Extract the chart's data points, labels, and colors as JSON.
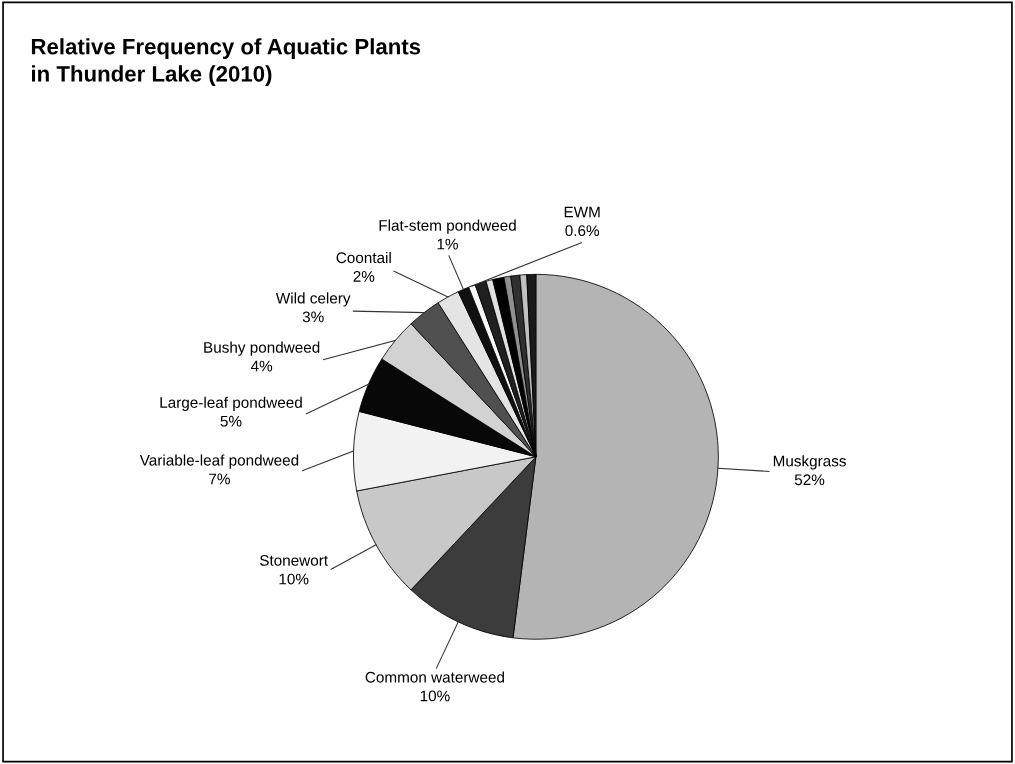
{
  "chart_data": {
    "type": "pie",
    "title": "Relative Frequency of Aquatic Plants\nin Thunder Lake (2010)",
    "categories": [
      "Muskgrass",
      "Common waterweed",
      "Stonewort",
      "Variable-leaf pondweed",
      "Large-leaf pondweed",
      "Bushy pondweed",
      "Wild celery",
      "Coontail",
      "Flat-stem pondweed",
      "EWM",
      null,
      null,
      null,
      null,
      null,
      null,
      null
    ],
    "values": [
      52,
      10,
      10,
      7,
      5,
      4,
      3,
      2,
      1,
      0.6,
      1,
      0.6,
      1,
      0.6,
      0.8,
      0.6,
      0.8
    ],
    "value_labels": [
      "52%",
      "10%",
      "10%",
      "7%",
      "5%",
      "4%",
      "3%",
      "2%",
      "1%",
      "0.6%",
      null,
      null,
      null,
      null,
      null,
      null,
      null
    ],
    "colors": [
      "#b4b4b4",
      "#3c3c3c",
      "#c8c8c8",
      "#f2f2f2",
      "#080808",
      "#d2d2d2",
      "#505050",
      "#e4e4e4",
      "#101010",
      "#f8f8f8",
      "#202020",
      "#e0e0e0",
      "#000000",
      "#909090",
      "#303030",
      "#c0c0c0",
      "#1a1a1a"
    ],
    "legend": false
  }
}
